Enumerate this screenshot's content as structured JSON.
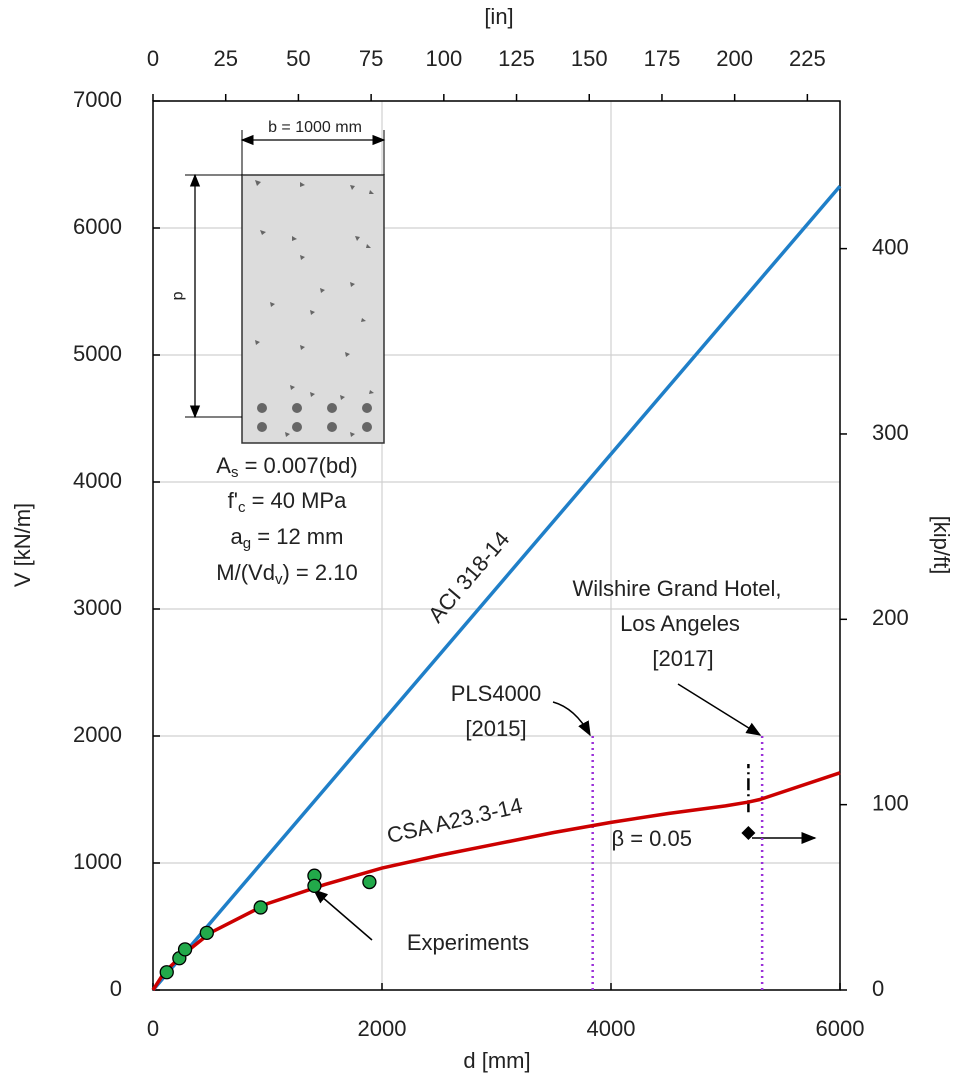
{
  "chart_data": {
    "type": "line",
    "xlabel": "d [mm]",
    "ylabel": "V [kN/m]",
    "x2label": "[in]",
    "y2label": "[kip/ft]",
    "xlim": [
      0,
      6000
    ],
    "xticks": [
      0,
      2000,
      4000,
      6000
    ],
    "ylim": [
      0,
      7000
    ],
    "yticks": [
      0,
      1000,
      2000,
      3000,
      4000,
      5000,
      6000,
      7000
    ],
    "x2lim": [
      0,
      236.22
    ],
    "x2ticks": [
      0,
      25,
      50,
      75,
      100,
      125,
      150,
      175,
      200,
      225
    ],
    "y2lim": [
      0,
      479.65
    ],
    "y2ticks": [
      0,
      100,
      200,
      300,
      400
    ],
    "grid": true,
    "series": [
      {
        "name": "ACI 318-14",
        "type": "line",
        "color": "#1f7fc8",
        "x": [
          0,
          6000
        ],
        "values": [
          0,
          6330
        ]
      },
      {
        "name": "CSA A23.3-14",
        "type": "line",
        "color": "#cc0000",
        "x": [
          0,
          100,
          250,
          500,
          1000,
          1500,
          2000,
          2500,
          3000,
          3500,
          4000,
          4500,
          5000,
          5200,
          5300,
          6000
        ],
        "values": [
          0,
          140,
          270,
          450,
          680,
          830,
          960,
          1060,
          1150,
          1240,
          1320,
          1390,
          1450,
          1480,
          1500,
          1710
        ]
      },
      {
        "name": "Experiments",
        "type": "scatter",
        "color": "#22a94a",
        "x": [
          120,
          230,
          280,
          470,
          940,
          1410,
          1410,
          1890
        ],
        "values": [
          140,
          250,
          320,
          450,
          650,
          900,
          820,
          850
        ]
      }
    ],
    "reference_lines": [
      {
        "x": 3840,
        "values": [
          0,
          2000
        ],
        "color": "#9b30d9",
        "style": "dotted"
      },
      {
        "x": 5320,
        "values": [
          0,
          2000
        ],
        "color": "#9b30d9",
        "style": "dotted"
      },
      {
        "x": 5200,
        "values": [
          1400,
          1780
        ],
        "color": "#000000",
        "style": "dashdot"
      }
    ],
    "beta_marker": {
      "x": 5200,
      "value": 1236,
      "label": "β = 0.05"
    },
    "annotations": {
      "pls": [
        "PLS4000",
        "[2015]"
      ],
      "wilshire": [
        "Wilshire Grand Hotel,",
        "Los Angeles",
        "[2017]"
      ]
    },
    "section": {
      "width_label": "b  =  1000  mm",
      "depth_label": "d",
      "lines": [
        [
          {
            "text": "A"
          },
          {
            "text": "s",
            "sub": true
          },
          {
            "text": " = 0.007(bd)"
          }
        ],
        [
          {
            "text": "f'"
          },
          {
            "text": "c",
            "sub": true
          },
          {
            "text": " = 40 MPa"
          }
        ],
        [
          {
            "text": "a"
          },
          {
            "text": "g",
            "sub": true
          },
          {
            "text": " = 12 mm"
          }
        ],
        [
          {
            "text": "M/(Vd"
          },
          {
            "text": "v",
            "sub": true
          },
          {
            "text": ") = 2.10"
          }
        ]
      ]
    }
  }
}
